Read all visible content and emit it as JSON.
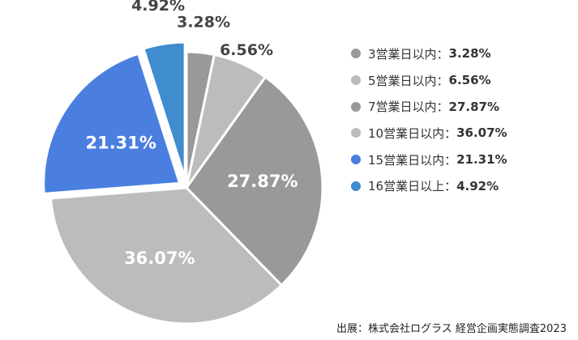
{
  "chart_data": {
    "type": "pie",
    "title": "",
    "categories": [
      "3営業日以内",
      "5営業日以内",
      "7営業日以内",
      "10営業日以内",
      "15営業日以内",
      "16営業日以上"
    ],
    "values": [
      3.28,
      6.56,
      27.87,
      36.07,
      21.31,
      4.92
    ],
    "labels": [
      "3.28%",
      "6.56%",
      "27.87%",
      "36.07%",
      "21.31%",
      "4.92%"
    ],
    "colors": [
      "#999999",
      "#bcbcbc",
      "#999999",
      "#bcbcbc",
      "#4a7fe0",
      "#3f8ccf"
    ],
    "legend_separator": "：",
    "legend_position": "right"
  },
  "source": "出展：株式会社ログラス 経営企画実態調査2023"
}
